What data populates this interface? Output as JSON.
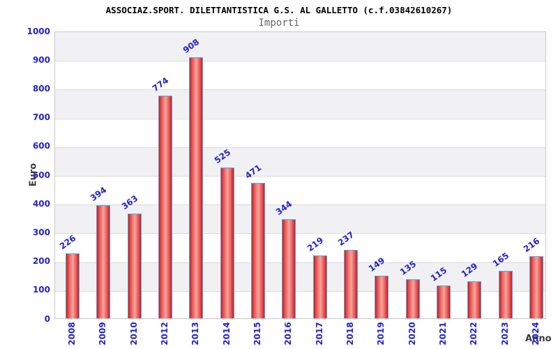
{
  "header": {
    "title": "ASSOCIAZ.SPORT. DILETTANTISTICA G.S. AL GALLETTO (c.f.03842610267)",
    "subtitle": "Importi"
  },
  "chart_data": {
    "type": "bar",
    "title": "ASSOCIAZ.SPORT. DILETTANTISTICA G.S. AL GALLETTO (c.f.03842610267)",
    "subtitle": "Importi",
    "categories": [
      "2008",
      "2009",
      "2010",
      "2012",
      "2013",
      "2014",
      "2015",
      "2016",
      "2017",
      "2018",
      "2019",
      "2020",
      "2021",
      "2022",
      "2023",
      "2024"
    ],
    "values": [
      226,
      394,
      363,
      774,
      908,
      525,
      471,
      344,
      219,
      237,
      149,
      135,
      115,
      129,
      165,
      216
    ],
    "xlabel": "Anno",
    "ylabel": "Euro",
    "ylim": [
      0,
      1000
    ],
    "ytick_step": 100,
    "yticks": [
      0,
      100,
      200,
      300,
      400,
      500,
      600,
      700,
      800,
      900,
      1000
    ],
    "grid": true,
    "legend_position": "none",
    "bar_value_labels_shown": true,
    "colors": {
      "tick_text": "#2323cc",
      "bar_border": "#58a6e8",
      "bar_dark": "#cc1a1a",
      "bar_mid": "#e85050",
      "bar_light": "#f2a69e",
      "band": "#f1f1f3",
      "grid": "#dcdcdc",
      "plot_border": "#c9c9c9",
      "axis_title_text": "#3a3a3a"
    }
  }
}
